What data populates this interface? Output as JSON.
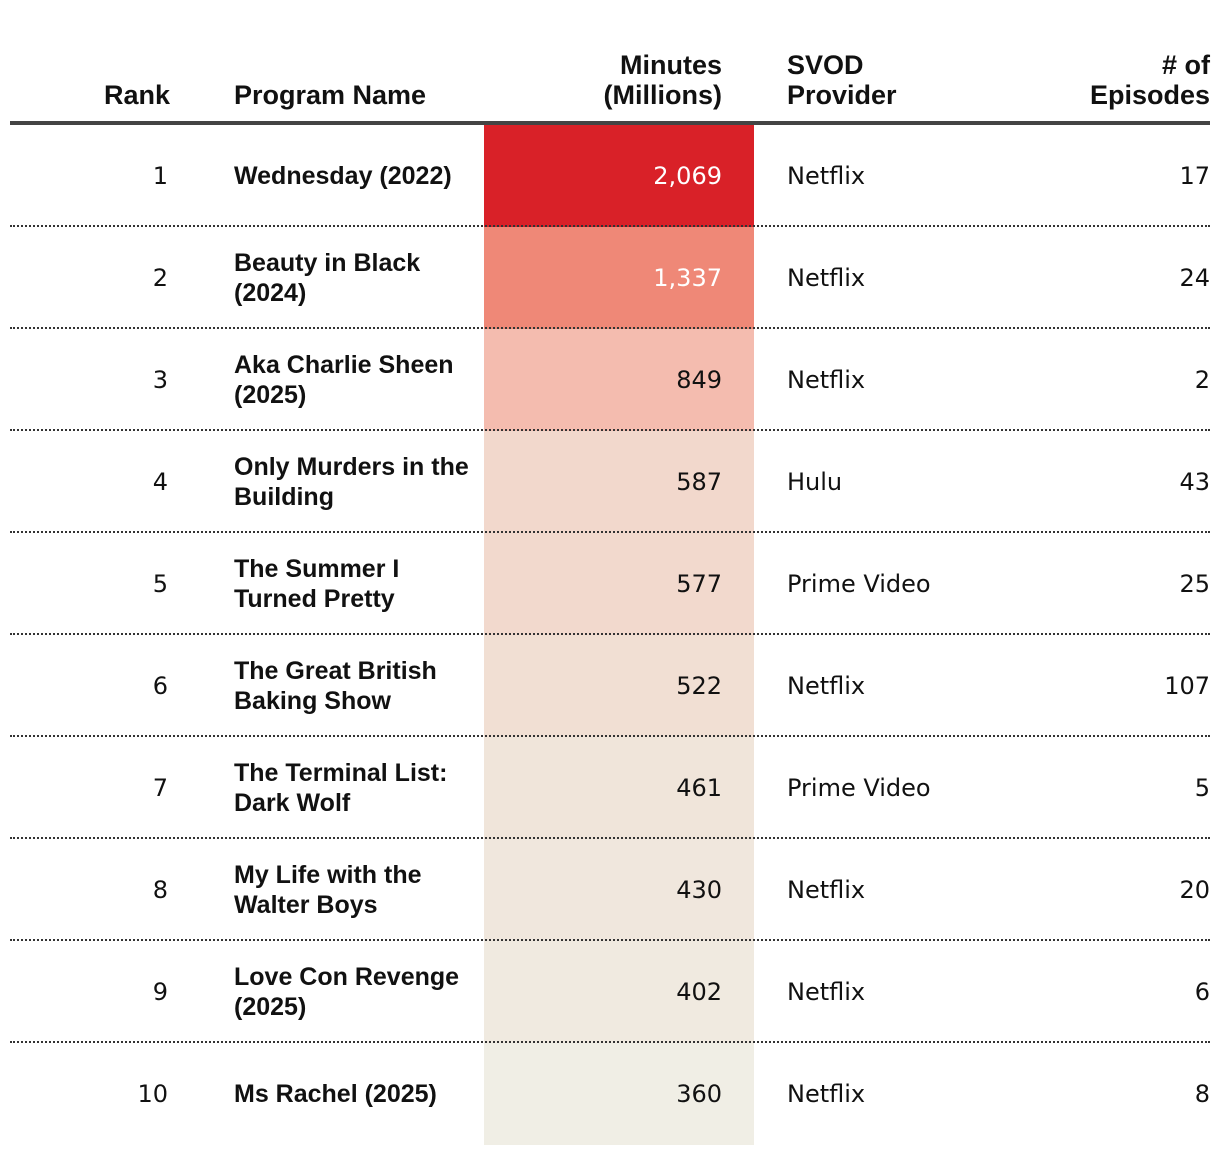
{
  "chart_data": {
    "type": "table",
    "columns": [
      "Rank",
      "Program Name",
      "Minutes (Millions)",
      "SVOD Provider",
      "# of Episodes"
    ],
    "header_lines": {
      "rank": [
        "Rank"
      ],
      "program": [
        "Program Name"
      ],
      "minutes": [
        "Minutes",
        "(Millions)"
      ],
      "provider": [
        "SVOD",
        "Provider"
      ],
      "episodes": [
        "# of",
        "Episodes"
      ]
    },
    "heat_colors": {
      "high": "#d92128",
      "mid_high": "#ef8877",
      "mid": "#f4bcaf",
      "low": "#f0ebe1"
    },
    "rows": [
      {
        "rank": "1",
        "program": "Wednesday (2022)",
        "minutes": 2069,
        "minutes_label": "2,069",
        "provider": "Netflix",
        "episodes": "17",
        "heat_color": "#d92128",
        "label_color": "#ffffff"
      },
      {
        "rank": "2",
        "program": "Beauty in Black (2024)",
        "minutes": 1337,
        "minutes_label": "1,337",
        "provider": "Netflix",
        "episodes": "24",
        "heat_color": "#ef8877",
        "label_color": "#ffffff"
      },
      {
        "rank": "3",
        "program": "Aka Charlie Sheen (2025)",
        "minutes": 849,
        "minutes_label": "849",
        "provider": "Netflix",
        "episodes": "2",
        "heat_color": "#f4bcaf",
        "label_color": "#111111"
      },
      {
        "rank": "4",
        "program": "Only Murders in the Building",
        "minutes": 587,
        "minutes_label": "587",
        "provider": "Hulu",
        "episodes": "43",
        "heat_color": "#f2d8cc",
        "label_color": "#111111"
      },
      {
        "rank": "5",
        "program": "The Summer I Turned Pretty",
        "minutes": 577,
        "minutes_label": "577",
        "provider": "Prime Video",
        "episodes": "25",
        "heat_color": "#f2d9cd",
        "label_color": "#111111"
      },
      {
        "rank": "6",
        "program": "The Great British Baking Show",
        "minutes": 522,
        "minutes_label": "522",
        "provider": "Netflix",
        "episodes": "107",
        "heat_color": "#f1dfd3",
        "label_color": "#111111"
      },
      {
        "rank": "7",
        "program": "The Terminal List: Dark Wolf",
        "minutes": 461,
        "minutes_label": "461",
        "provider": "Prime Video",
        "episodes": "5",
        "heat_color": "#f0e5da",
        "label_color": "#111111"
      },
      {
        "rank": "8",
        "program": "My Life with the Walter Boys",
        "minutes": 430,
        "minutes_label": "430",
        "provider": "Netflix",
        "episodes": "20",
        "heat_color": "#f0e7dd",
        "label_color": "#111111"
      },
      {
        "rank": "9",
        "program": "Love Con Revenge (2025)",
        "minutes": 402,
        "minutes_label": "402",
        "provider": "Netflix",
        "episodes": "6",
        "heat_color": "#f0eae0",
        "label_color": "#111111"
      },
      {
        "rank": "10",
        "program": "Ms Rachel (2025)",
        "minutes": 360,
        "minutes_label": "360",
        "provider": "Netflix",
        "episodes": "8",
        "heat_color": "#f0eee5",
        "label_color": "#111111"
      }
    ]
  }
}
